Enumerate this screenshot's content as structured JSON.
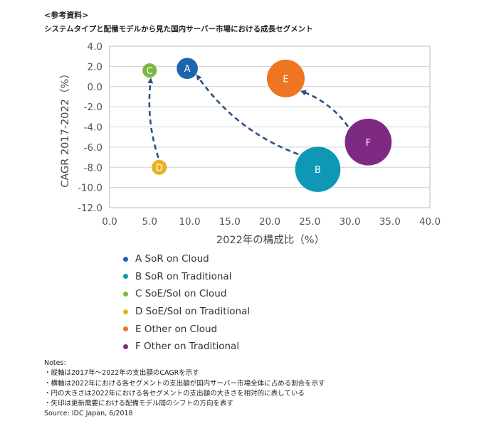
{
  "header": {
    "ref": "<参考資料>",
    "subtitle": "システムタイプと配備モデルから見た国内サーバー市場における成長セグメント"
  },
  "chart_data": {
    "type": "bubble",
    "xlabel": "2022年の構成比（%）",
    "ylabel": "CAGR 2017-2022（%）",
    "xlim": [
      0,
      40
    ],
    "ylim": [
      -12,
      4
    ],
    "xticks": [
      "0.0",
      "5.0",
      "10.0",
      "15.0",
      "20.0",
      "25.0",
      "30.0",
      "35.0",
      "40.0"
    ],
    "yticks": [
      "4.0",
      "2.0",
      "0.0",
      "-2.0",
      "-4.0",
      "-6.0",
      "-8.0",
      "-10.0",
      "-12.0"
    ],
    "grid": "horizontal",
    "points": [
      {
        "label": "A",
        "name": "SoR on Cloud",
        "x": 9.7,
        "y": 1.8,
        "size": 2.8,
        "color": "#1a65ac"
      },
      {
        "label": "B",
        "name": "SoR on Traditional",
        "x": 26.0,
        "y": -8.2,
        "size": 6.0,
        "color": "#0f97b6"
      },
      {
        "label": "C",
        "name": "SoE/SoI on Cloud",
        "x": 5.0,
        "y": 1.6,
        "size": 1.9,
        "color": "#79b943"
      },
      {
        "label": "D",
        "name": "SoE/SoI on Traditional",
        "x": 6.2,
        "y": -8.0,
        "size": 2.0,
        "color": "#e7b121"
      },
      {
        "label": "E",
        "name": "Other on Cloud",
        "x": 22.0,
        "y": 0.8,
        "size": 5.0,
        "color": "#ee7521"
      },
      {
        "label": "F",
        "name": "Other on Traditional",
        "x": 32.3,
        "y": -5.5,
        "size": 6.2,
        "color": "#7e2a82"
      }
    ],
    "arrows": [
      {
        "from": "D",
        "to": "C"
      },
      {
        "from": "B",
        "to": "A"
      },
      {
        "from": "F",
        "to": "E"
      }
    ],
    "legend": [
      {
        "text": "A SoR on Cloud",
        "color": "#1a65ac"
      },
      {
        "text": "B SoR on Traditional",
        "color": "#0f97b6"
      },
      {
        "text": "C SoE/SoI on Cloud",
        "color": "#79b943"
      },
      {
        "text": "D SoE/SoI on Traditional",
        "color": "#e7b121"
      },
      {
        "text": "E Other on Cloud",
        "color": "#ee7521"
      },
      {
        "text": "F Other on Traditional",
        "color": "#7e2a82"
      }
    ]
  },
  "notes": {
    "title": "Notes:",
    "lines": [
      "・縦軸は2017年～2022年の支出額のCAGRを示す",
      "・横軸は2022年における各セグメントの支出額が国内サーバー市場全体に占める割合を示す",
      "・円の大きさは2022年における各セグメントの支出額の大きさを相対的に表している",
      "・矢印は更新需要における配備モデル間のシフトの方向を表す"
    ],
    "source": "Source: IDC Japan, 6/2018"
  }
}
